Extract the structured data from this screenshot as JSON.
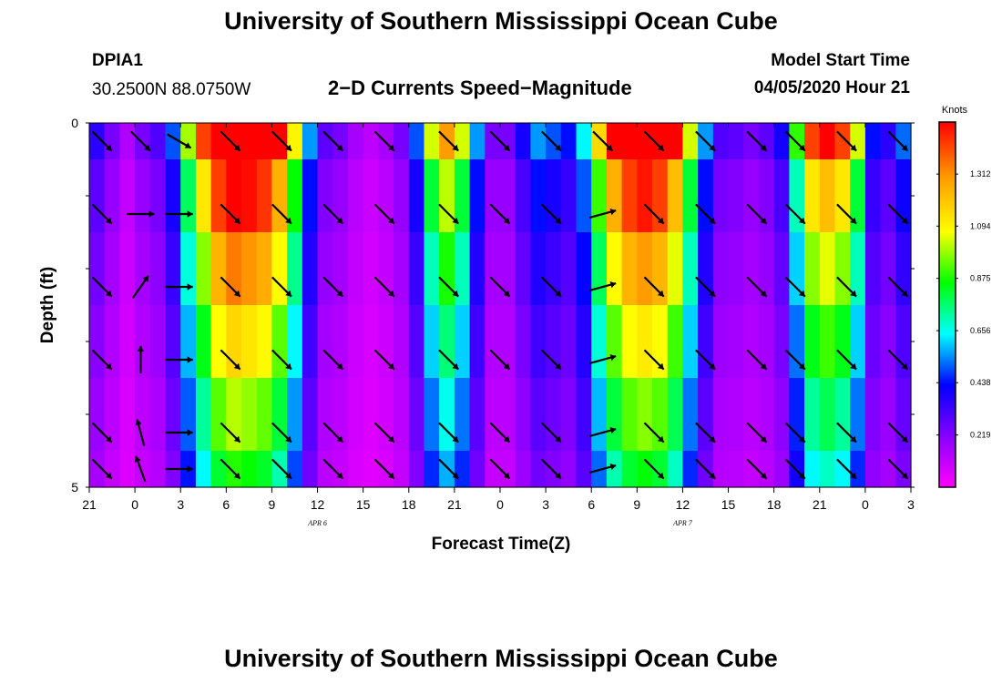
{
  "header": {
    "title": "University of Southern Mississippi Ocean Cube",
    "station": "DPIA1",
    "coords": "30.2500N 88.0750W",
    "subtitle": "2−D Currents Speed−Magnitude",
    "model_label": "Model Start Time",
    "model_time": "04/05/2020 Hour 21"
  },
  "footer": {
    "title": "University of Southern Mississippi Ocean Cube"
  },
  "chart_data": {
    "type": "heatmap",
    "title": "2−D Currents Speed−Magnitude",
    "xlabel": "Forecast Time(Z)",
    "ylabel": "Depth (ft)",
    "xlim": [
      0,
      54
    ],
    "ylim": [
      0,
      5
    ],
    "x_ticks": [
      {
        "x": 0,
        "label": "21"
      },
      {
        "x": 3,
        "label": "0"
      },
      {
        "x": 6,
        "label": "3"
      },
      {
        "x": 9,
        "label": "6"
      },
      {
        "x": 12,
        "label": "9"
      },
      {
        "x": 15,
        "label": "12"
      },
      {
        "x": 18,
        "label": "15"
      },
      {
        "x": 21,
        "label": "18"
      },
      {
        "x": 24,
        "label": "21"
      },
      {
        "x": 27,
        "label": "0"
      },
      {
        "x": 30,
        "label": "3"
      },
      {
        "x": 33,
        "label": "6"
      },
      {
        "x": 36,
        "label": "9"
      },
      {
        "x": 39,
        "label": "12"
      },
      {
        "x": 42,
        "label": "15"
      },
      {
        "x": 45,
        "label": "18"
      },
      {
        "x": 48,
        "label": "21"
      },
      {
        "x": 51,
        "label": "0"
      },
      {
        "x": 54,
        "label": "3"
      }
    ],
    "date_labels": [
      {
        "x": 15,
        "label": "APR 6"
      },
      {
        "x": 39,
        "label": "APR 7"
      }
    ],
    "y_ticks": [
      {
        "y": 0,
        "label": "0"
      },
      {
        "y": 5,
        "label": "5"
      }
    ],
    "depths": [
      0.25,
      1.25,
      2.25,
      3.25,
      4.25,
      4.75
    ],
    "profile": [
      0.18,
      0.12,
      0.07,
      0.12,
      0.15,
      0.25,
      0.5,
      0.72,
      0.92,
      1.0,
      0.97,
      0.93,
      0.8,
      0.55,
      0.28,
      0.14,
      0.12,
      0.08,
      0.06,
      0.08,
      0.12,
      0.25,
      0.52,
      0.65,
      0.52,
      0.28,
      0.12,
      0.12,
      0.2,
      0.28,
      0.25,
      0.22,
      0.32,
      0.58,
      0.8,
      0.92,
      0.96,
      0.92,
      0.78,
      0.52,
      0.28,
      0.15,
      0.14,
      0.12,
      0.14,
      0.2,
      0.45,
      0.72,
      0.78,
      0.72,
      0.52,
      0.22,
      0.18,
      0.26
    ],
    "layer_scale": [
      1.3,
      1.02,
      0.88,
      0.76,
      0.66,
      0.58
    ],
    "scale_min": 0,
    "scale_max": 1.53,
    "colorbar": {
      "unit": "Knots",
      "ticks": [
        0.219,
        0.438,
        0.656,
        0.875,
        1.094,
        1.312
      ],
      "tick_labels": [
        "0.219",
        "0.438",
        "0.656",
        "0.875",
        "1.094",
        "1.312"
      ]
    },
    "vector_x": [
      1,
      4,
      7,
      11,
      15,
      19,
      23,
      28,
      32,
      36,
      40,
      44,
      48,
      52,
      55,
      59,
      63
    ],
    "vector_angles_deg": [
      [
        45,
        45,
        30,
        45,
        45,
        45,
        45,
        45,
        45,
        45,
        45,
        45,
        45,
        45,
        45,
        45,
        45
      ],
      [
        45,
        0,
        0,
        45,
        45,
        45,
        45,
        45,
        45,
        45,
        -15,
        45,
        45,
        45,
        45,
        45,
        45
      ],
      [
        45,
        -55,
        0,
        45,
        45,
        45,
        45,
        45,
        45,
        45,
        -15,
        45,
        45,
        45,
        45,
        45,
        45
      ],
      [
        45,
        -90,
        0,
        45,
        45,
        45,
        45,
        45,
        45,
        45,
        -15,
        45,
        45,
        45,
        45,
        45,
        45
      ],
      [
        45,
        -105,
        0,
        45,
        45,
        45,
        45,
        45,
        45,
        45,
        -15,
        45,
        45,
        45,
        45,
        45,
        45
      ],
      [
        45,
        -110,
        0,
        45,
        45,
        45,
        45,
        45,
        45,
        45,
        -15,
        45,
        45,
        45,
        45,
        45,
        45
      ]
    ]
  }
}
